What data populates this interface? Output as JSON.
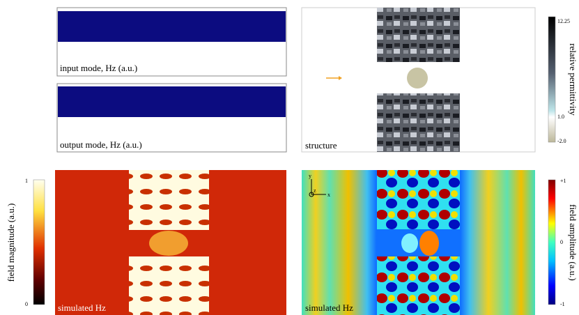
{
  "panels": {
    "input_mode": {
      "label": "input mode, Hz (a.u.)"
    },
    "output_mode": {
      "label": "output mode, Hz (a.u.)"
    },
    "structure": {
      "label": "structure"
    },
    "magnitude": {
      "label": "simulated Hz"
    },
    "amplitude": {
      "label": "simulated Hz",
      "axes": [
        "y",
        "z",
        "x"
      ]
    }
  },
  "colorbars": {
    "permittivity": {
      "title": "relative permittivity",
      "ticks": [
        "12.25",
        "1.0",
        "-2.0"
      ]
    },
    "magnitude": {
      "title": "field magnitude (a.u.)",
      "ticks": [
        "1",
        "0"
      ]
    },
    "amplitude": {
      "title": "field amplitude (a.u.)",
      "ticks": [
        "+1",
        "0",
        "-1"
      ]
    }
  }
}
